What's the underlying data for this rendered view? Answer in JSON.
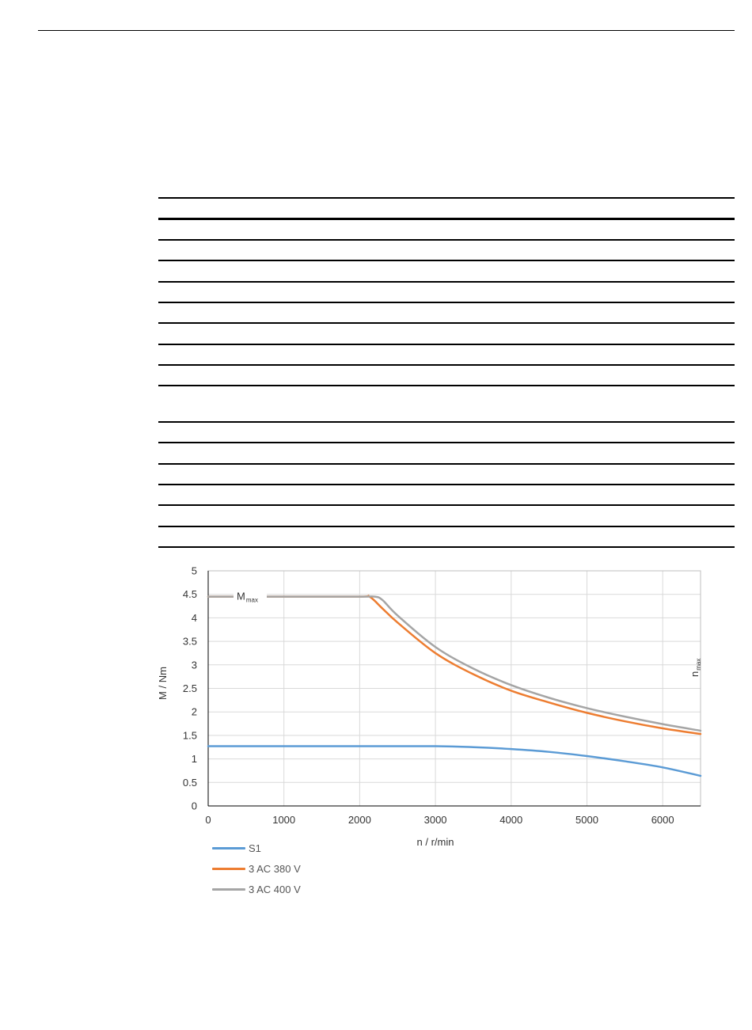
{
  "chart_data": {
    "type": "line",
    "xlabel": "n / r/min",
    "ylabel": "M / Nm",
    "xlim": [
      0,
      6500
    ],
    "ylim": [
      0,
      5
    ],
    "x_ticks": [
      "0",
      "1000",
      "2000",
      "3000",
      "4000",
      "5000",
      "6000"
    ],
    "y_ticks": [
      "0",
      "0.5",
      "1",
      "1.5",
      "2",
      "2.5",
      "3",
      "3.5",
      "4",
      "4.5",
      "5"
    ],
    "grid": true,
    "legend_position": "bottom-left",
    "annotations": {
      "mmax": {
        "main": "M",
        "sub": "max",
        "value": 4.45
      },
      "nmax": {
        "main": "n",
        "sub": "max",
        "value": 6500
      }
    },
    "series": [
      {
        "name": "S1",
        "color": "#5b9bd5",
        "x": [
          0,
          1000,
          2000,
          3000,
          3500,
          4000,
          4500,
          5000,
          5500,
          6000,
          6500
        ],
        "y": [
          1.27,
          1.27,
          1.27,
          1.27,
          1.25,
          1.21,
          1.15,
          1.06,
          0.95,
          0.82,
          0.64
        ]
      },
      {
        "name": "3 AC 380 V",
        "color": "#ed7d31",
        "x": [
          0,
          1000,
          2000,
          2130,
          2300,
          2500,
          3000,
          3500,
          4000,
          4500,
          5000,
          5500,
          6000,
          6500
        ],
        "y": [
          4.45,
          4.45,
          4.45,
          4.45,
          4.2,
          3.9,
          3.25,
          2.8,
          2.45,
          2.2,
          1.98,
          1.8,
          1.65,
          1.53
        ]
      },
      {
        "name": "3 AC 400 V",
        "color": "#a5a5a5",
        "x": [
          0,
          1000,
          2000,
          2200,
          2300,
          2500,
          3000,
          3500,
          4000,
          4500,
          5000,
          5500,
          6000,
          6500
        ],
        "y": [
          4.45,
          4.45,
          4.45,
          4.45,
          4.38,
          4.05,
          3.38,
          2.92,
          2.57,
          2.3,
          2.08,
          1.9,
          1.74,
          1.6
        ]
      }
    ]
  }
}
